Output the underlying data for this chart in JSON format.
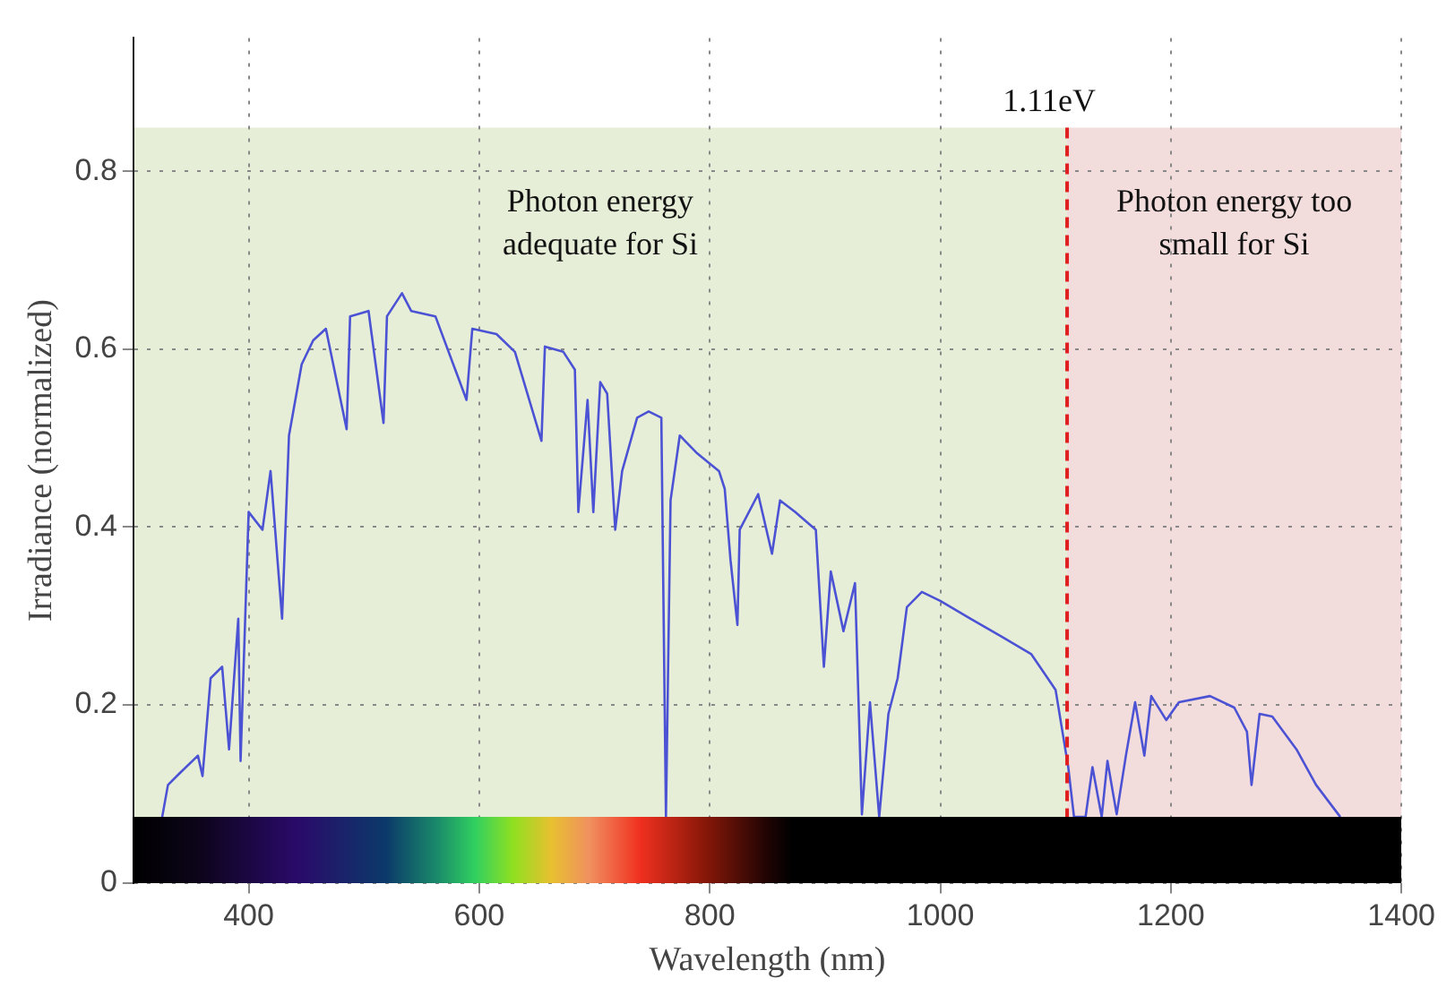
{
  "chart_data": {
    "type": "line",
    "xlabel": "Wavelength (nm)",
    "ylabel": "Irradiance (normalized)",
    "x": [
      325,
      330,
      340,
      356,
      360,
      367,
      377,
      383,
      391,
      393,
      400,
      412,
      419,
      429,
      435,
      446,
      456,
      467,
      485,
      488,
      504,
      517,
      520,
      533,
      541,
      562,
      589,
      594,
      615,
      631,
      654,
      657,
      673,
      683,
      686,
      694,
      699,
      705,
      711,
      718,
      724,
      737,
      747,
      758,
      762,
      766,
      774,
      789,
      808,
      813,
      818,
      824,
      826,
      842,
      854,
      861,
      874,
      892,
      899,
      905,
      916,
      926,
      932,
      939,
      947,
      955,
      963,
      971,
      984,
      1000,
      1026,
      1053,
      1079,
      1100,
      1111,
      1116,
      1126,
      1132,
      1140,
      1145,
      1153,
      1161,
      1169,
      1177,
      1183,
      1196,
      1207,
      1234,
      1255,
      1266,
      1270,
      1277,
      1288,
      1309,
      1326,
      1347
    ],
    "series": [
      {
        "color": "#4c52d4",
        "values": [
          0.074,
          0.11,
          0.123,
          0.143,
          0.12,
          0.23,
          0.243,
          0.15,
          0.297,
          0.137,
          0.417,
          0.397,
          0.463,
          0.297,
          0.503,
          0.583,
          0.61,
          0.623,
          0.51,
          0.637,
          0.643,
          0.517,
          0.637,
          0.663,
          0.643,
          0.637,
          0.543,
          0.623,
          0.617,
          0.597,
          0.497,
          0.603,
          0.597,
          0.577,
          0.417,
          0.543,
          0.417,
          0.563,
          0.55,
          0.397,
          0.463,
          0.523,
          0.53,
          0.523,
          0.074,
          0.43,
          0.503,
          0.483,
          0.463,
          0.443,
          0.363,
          0.29,
          0.397,
          0.437,
          0.37,
          0.43,
          0.417,
          0.397,
          0.243,
          0.35,
          0.283,
          0.337,
          0.077,
          0.203,
          0.074,
          0.19,
          0.23,
          0.31,
          0.327,
          0.317,
          0.297,
          0.277,
          0.257,
          0.217,
          0.13,
          0.074,
          0.074,
          0.13,
          0.074,
          0.137,
          0.077,
          0.143,
          0.203,
          0.143,
          0.21,
          0.183,
          0.203,
          0.21,
          0.197,
          0.17,
          0.11,
          0.19,
          0.187,
          0.15,
          0.11,
          0.074
        ]
      }
    ],
    "xlim": [
      300,
      1400
    ],
    "xticks": [
      400,
      600,
      800,
      1000,
      1200,
      1400
    ],
    "ylim": [
      0,
      0.95
    ],
    "yticks": [
      0,
      0.2,
      0.4,
      0.6,
      0.8
    ],
    "grid": true,
    "legend": false,
    "marker": "none",
    "line_style": "solid",
    "ref_lines": [
      {
        "axis": "x",
        "value": 1110,
        "label": "1.11eV",
        "color": "#e02020",
        "line_style": "dashed"
      }
    ],
    "bands": [
      {
        "axis": "x",
        "from": 300,
        "to": 1110,
        "label": "Photon energy adequate for Si",
        "color": "#e6eed8"
      },
      {
        "axis": "x",
        "from": 1110,
        "to": 1400,
        "label": "Photon energy too small for Si",
        "color": "#f2dcdc"
      }
    ]
  }
}
